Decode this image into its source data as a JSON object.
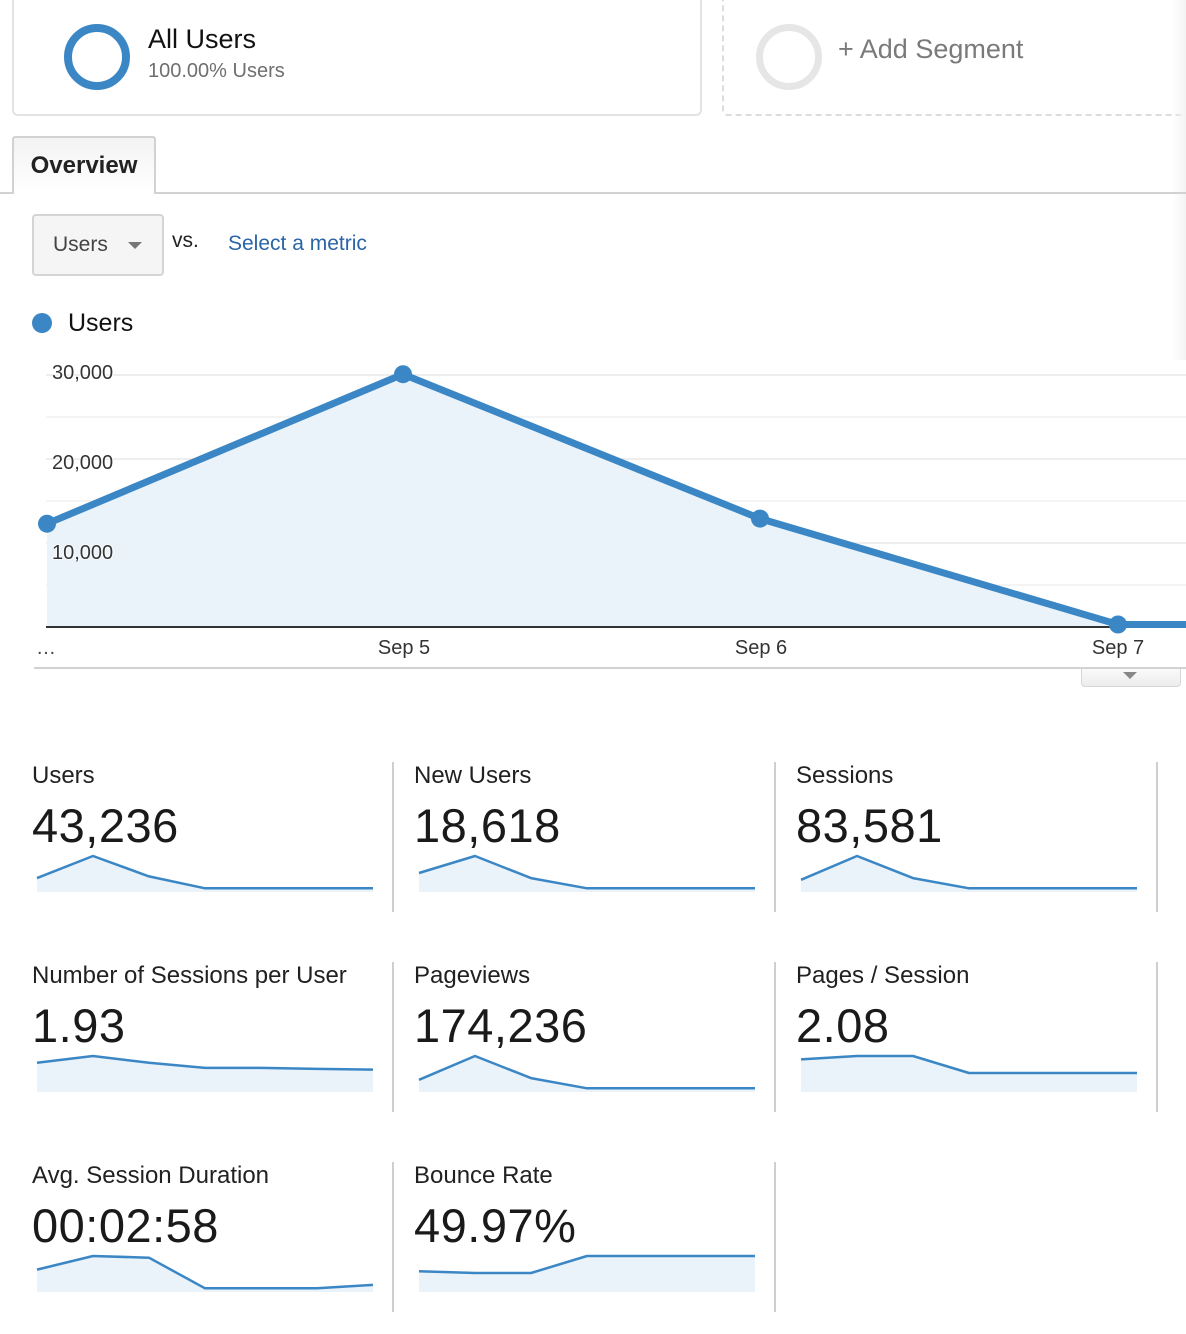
{
  "segments": {
    "active": {
      "title": "All Users",
      "subtitle": "100.00% Users",
      "color": "#3b87c5"
    },
    "add_label": "+ Add Segment"
  },
  "tabs": [
    {
      "label": "Overview",
      "active": true
    }
  ],
  "metric_selector": {
    "selected": "Users",
    "vs_label": "vs.",
    "compare_link": "Select a metric"
  },
  "legend": {
    "label": "Users",
    "color": "#3b87c5"
  },
  "chart_data": {
    "type": "area",
    "title": "",
    "xlabel": "",
    "ylabel": "",
    "legend": [
      "Users"
    ],
    "legend_position": "top-left",
    "grid": true,
    "categories": [
      "…",
      "Sep 5",
      "Sep 6",
      "Sep 7"
    ],
    "series": [
      {
        "name": "Users",
        "color": "#3b87c5",
        "values": [
          12300,
          30100,
          12900,
          300
        ]
      }
    ],
    "y_ticks": [
      "30,000",
      "20,000",
      "10,000"
    ],
    "ylim": [
      0,
      30000
    ]
  },
  "scorecards": [
    {
      "label": "Users",
      "value": "43,236",
      "spark": [
        0.35,
        1.0,
        0.4,
        0.05,
        0.05,
        0.05,
        0.05
      ]
    },
    {
      "label": "New Users",
      "value": "18,618",
      "spark": [
        0.5,
        1.0,
        0.35,
        0.05,
        0.05,
        0.05,
        0.05
      ]
    },
    {
      "label": "Sessions",
      "value": "83,581",
      "spark": [
        0.3,
        1.0,
        0.35,
        0.05,
        0.05,
        0.05,
        0.05
      ]
    },
    {
      "label": "Number of Sessions per User",
      "value": "1.93",
      "spark": [
        0.8,
        1.0,
        0.8,
        0.65,
        0.65,
        0.62,
        0.6
      ]
    },
    {
      "label": "Pageviews",
      "value": "174,236",
      "spark": [
        0.3,
        1.0,
        0.35,
        0.05,
        0.05,
        0.05,
        0.05
      ]
    },
    {
      "label": "Pages / Session",
      "value": "2.08",
      "spark": [
        0.9,
        1.0,
        1.0,
        0.5,
        0.5,
        0.5,
        0.5
      ]
    },
    {
      "label": "Avg. Session Duration",
      "value": "00:02:58",
      "spark": [
        0.6,
        1.0,
        0.95,
        0.05,
        0.05,
        0.05,
        0.15
      ]
    },
    {
      "label": "Bounce Rate",
      "value": "49.97%",
      "spark": [
        0.55,
        0.5,
        0.5,
        1.0,
        1.0,
        1.0,
        1.0
      ]
    }
  ]
}
